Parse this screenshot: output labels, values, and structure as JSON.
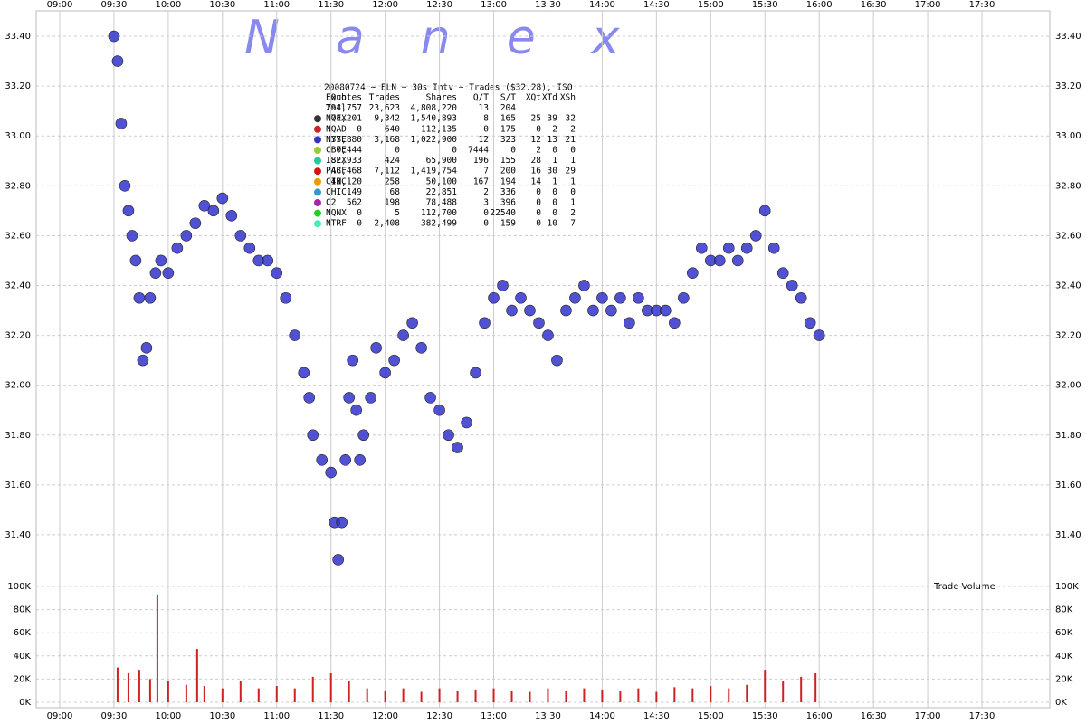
{
  "chart_data": [
    {
      "type": "scatter",
      "title": "20080724 ~ ELN ~ 30s Intv ~ Trades ($32.28), ISO",
      "watermark": "Nanex",
      "color": "#3333cc",
      "xlim": [
        "09:00",
        "17:30"
      ],
      "xticks": [
        "09:00",
        "09:30",
        "10:00",
        "10:30",
        "11:00",
        "11:30",
        "12:00",
        "12:30",
        "13:00",
        "13:30",
        "14:00",
        "14:30",
        "15:00",
        "15:30",
        "16:00",
        "16:30",
        "17:00",
        "17:30"
      ],
      "ylim": [
        31.24,
        33.48
      ],
      "yticks": [
        {
          "value": 31.4,
          "label": "31.40"
        },
        {
          "value": 31.6,
          "label": "31.60"
        },
        {
          "value": 31.8,
          "label": "31.80"
        },
        {
          "value": 32,
          "label": "32.00"
        },
        {
          "value": 32.2,
          "label": "32.20"
        },
        {
          "value": 32.4,
          "label": "32.40"
        },
        {
          "value": 32.6,
          "label": "32.60"
        },
        {
          "value": 32.8,
          "label": "32.80"
        },
        {
          "value": 33,
          "label": "33.00"
        },
        {
          "value": 33.2,
          "label": "33.20"
        },
        {
          "value": 33.4,
          "label": "33.40"
        }
      ],
      "grid": true,
      "x": [
        "09:30",
        "09:32",
        "09:34",
        "09:36",
        "09:38",
        "09:40",
        "09:42",
        "09:44",
        "09:46",
        "09:48",
        "09:50",
        "09:53",
        "09:56",
        "10:00",
        "10:05",
        "10:10",
        "10:15",
        "10:20",
        "10:25",
        "10:30",
        "10:35",
        "10:40",
        "10:45",
        "10:50",
        "10:55",
        "11:00",
        "11:05",
        "11:10",
        "11:15",
        "11:18",
        "11:20",
        "11:25",
        "11:30",
        "11:32",
        "11:34",
        "11:36",
        "11:38",
        "11:40",
        "11:42",
        "11:44",
        "11:46",
        "11:48",
        "11:52",
        "11:55",
        "12:00",
        "12:05",
        "12:10",
        "12:15",
        "12:20",
        "12:25",
        "12:30",
        "12:35",
        "12:40",
        "12:45",
        "12:50",
        "12:55",
        "13:00",
        "13:05",
        "13:10",
        "13:15",
        "13:20",
        "13:25",
        "13:30",
        "13:35",
        "13:40",
        "13:45",
        "13:50",
        "13:55",
        "14:00",
        "14:05",
        "14:10",
        "14:15",
        "14:20",
        "14:25",
        "14:30",
        "14:35",
        "14:40",
        "14:45",
        "14:50",
        "14:55",
        "15:00",
        "15:05",
        "15:10",
        "15:15",
        "15:20",
        "15:25",
        "15:30",
        "15:35",
        "15:40",
        "15:45",
        "15:50",
        "15:55",
        "16:00"
      ],
      "values": [
        33.4,
        33.3,
        33.05,
        32.8,
        32.7,
        32.6,
        32.5,
        32.35,
        32.1,
        32.15,
        32.35,
        32.45,
        32.5,
        32.45,
        32.55,
        32.6,
        32.65,
        32.72,
        32.7,
        32.75,
        32.68,
        32.6,
        32.55,
        32.5,
        32.5,
        32.45,
        32.35,
        32.2,
        32.05,
        31.95,
        31.8,
        31.7,
        31.65,
        31.45,
        31.3,
        31.45,
        31.7,
        31.95,
        32.1,
        31.9,
        31.7,
        31.8,
        31.95,
        32.15,
        32.05,
        32.1,
        32.2,
        32.25,
        32.15,
        31.95,
        31.9,
        31.8,
        31.75,
        31.85,
        32.05,
        32.25,
        32.35,
        32.4,
        32.3,
        32.35,
        32.3,
        32.25,
        32.2,
        32.1,
        32.3,
        32.35,
        32.4,
        32.3,
        32.35,
        32.3,
        32.35,
        32.25,
        32.35,
        32.3,
        32.3,
        32.3,
        32.25,
        32.35,
        32.45,
        32.55,
        32.5,
        32.5,
        32.55,
        32.5,
        32.55,
        32.6,
        32.7,
        32.55,
        32.45,
        32.4,
        32.35,
        32.25,
        32.2
      ],
      "table": {
        "columns": [
          "Exch",
          "Quotes",
          "Trades",
          "Shares",
          "Q/T",
          "S/T",
          "XQt",
          "XTd",
          "XSh"
        ],
        "marker_colors": [
          null,
          "#333333",
          "#cc2222",
          "#3333cc",
          "#99cc33",
          "#22cc99",
          "#dd1111",
          "#ee9900",
          "#3399cc",
          "#aa22aa",
          "#22cc22",
          "#44eebb"
        ],
        "rows": [
          [
            "Totl",
            "294,757",
            "23,623",
            "4,808,220",
            "13",
            "204"
          ],
          [
            "NQEX",
            "74,201",
            "9,342",
            "1,540,893",
            "8",
            "165",
            "25",
            "39",
            "32"
          ],
          [
            "NQAD",
            "0",
            "640",
            "112,135",
            "0",
            "175",
            "0",
            "2",
            "2"
          ],
          [
            "NYSE",
            "37,880",
            "3,168",
            "1,022,900",
            "12",
            "323",
            "12",
            "13",
            "21"
          ],
          [
            "CBOE",
            "7,444",
            "0",
            "0",
            "7444",
            "0",
            "2",
            "0",
            "0"
          ],
          [
            "ISEX",
            "82,933",
            "424",
            "65,900",
            "196",
            "155",
            "28",
            "1",
            "1"
          ],
          [
            "PACF",
            "48,468",
            "7,112",
            "1,419,754",
            "7",
            "200",
            "16",
            "30",
            "29"
          ],
          [
            "CINC",
            "43,120",
            "258",
            "50,100",
            "167",
            "194",
            "14",
            "1",
            "1"
          ],
          [
            "CHIC",
            "149",
            "68",
            "22,851",
            "2",
            "336",
            "0",
            "0",
            "0"
          ],
          [
            "C2",
            "562",
            "198",
            "78,488",
            "3",
            "396",
            "0",
            "0",
            "1"
          ],
          [
            "NQNX",
            "0",
            "5",
            "112,700",
            "0",
            "22540",
            "0",
            "0",
            "2"
          ],
          [
            "NTRF",
            "0",
            "2,408",
            "382,499",
            "0",
            "159",
            "0",
            "10",
            "7"
          ]
        ]
      }
    },
    {
      "type": "bar",
      "label": "Trade Volume",
      "color": "#cc2222",
      "ylim": [
        0,
        100000
      ],
      "yticks": [
        {
          "value": 0,
          "label": "0K"
        },
        {
          "value": 20000,
          "label": "20K"
        },
        {
          "value": 40000,
          "label": "40K"
        },
        {
          "value": 60000,
          "label": "60K"
        },
        {
          "value": 80000,
          "label": "80K"
        },
        {
          "value": 100000,
          "label": "100K"
        }
      ],
      "x": [
        "09:32",
        "09:38",
        "09:44",
        "09:50",
        "09:54",
        "10:00",
        "10:10",
        "10:16",
        "10:20",
        "10:30",
        "10:40",
        "10:50",
        "11:00",
        "11:10",
        "11:20",
        "11:30",
        "11:40",
        "11:50",
        "12:00",
        "12:10",
        "12:20",
        "12:30",
        "12:40",
        "12:50",
        "13:00",
        "13:10",
        "13:20",
        "13:30",
        "13:40",
        "13:50",
        "14:00",
        "14:10",
        "14:20",
        "14:30",
        "14:40",
        "14:50",
        "15:00",
        "15:10",
        "15:20",
        "15:30",
        "15:40",
        "15:50",
        "15:58"
      ],
      "values": [
        30000,
        25000,
        28000,
        20000,
        93000,
        18000,
        15000,
        46000,
        14000,
        12000,
        18000,
        12000,
        14000,
        12000,
        22000,
        25000,
        18000,
        12000,
        10000,
        12000,
        9000,
        12000,
        10000,
        11000,
        12000,
        10000,
        9000,
        12000,
        10000,
        12000,
        11000,
        10000,
        12000,
        9000,
        13000,
        12000,
        14000,
        12000,
        15000,
        28000,
        18000,
        22000,
        25000
      ]
    }
  ]
}
